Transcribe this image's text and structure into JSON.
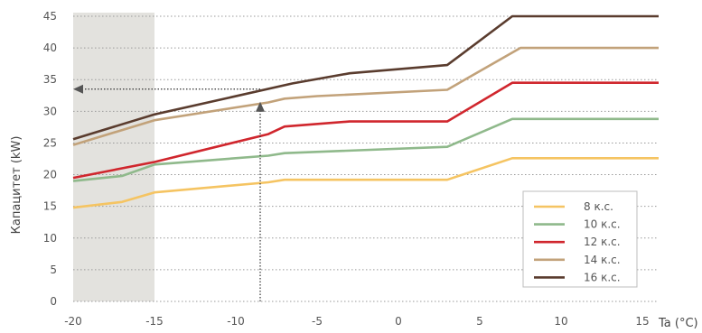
{
  "chart_data": {
    "type": "line",
    "xlabel": "Ta (°C)",
    "ylabel": "Капацитет (kW)",
    "xlim": [
      -20,
      16
    ],
    "ylim": [
      0,
      45
    ],
    "x_ticks": [
      "-20",
      "-15",
      "-10",
      "-5",
      "0",
      "5",
      "10",
      "15"
    ],
    "y_ticks": [
      "0",
      "5",
      "10",
      "15",
      "20",
      "25",
      "30",
      "35",
      "40",
      "45"
    ],
    "grid": "horizontal dotted",
    "legend_position": "bottom-right",
    "shaded_region": {
      "x_from": -20,
      "x_to": -15,
      "color": "#e3e2de"
    },
    "annotation": {
      "type": "dotted arrows",
      "vertical_at_x": -8.5,
      "vertical_to_y": 31.5,
      "horizontal_at_y": 33.5,
      "horizontal_to_x": -20
    },
    "series": [
      {
        "name": "8 к.с.",
        "color": "#f5c462",
        "points": [
          [
            -20,
            14.8
          ],
          [
            -17,
            15.7
          ],
          [
            -15,
            17.2
          ],
          [
            -8,
            18.8
          ],
          [
            -7,
            19.2
          ],
          [
            3,
            19.2
          ],
          [
            7,
            22.6
          ],
          [
            16,
            22.6
          ]
        ]
      },
      {
        "name": "10 к.с.",
        "color": "#8fb98b",
        "points": [
          [
            -20,
            19.0
          ],
          [
            -17,
            19.8
          ],
          [
            -15,
            21.6
          ],
          [
            -8,
            23.0
          ],
          [
            -7,
            23.4
          ],
          [
            3,
            24.4
          ],
          [
            7,
            28.8
          ],
          [
            16,
            28.8
          ]
        ]
      },
      {
        "name": "12 к.с.",
        "color": "#d0262d",
        "points": [
          [
            -20,
            19.5
          ],
          [
            -15,
            22.0
          ],
          [
            -8,
            26.4
          ],
          [
            -7,
            27.6
          ],
          [
            -3,
            28.4
          ],
          [
            3,
            28.4
          ],
          [
            7,
            34.5
          ],
          [
            16,
            34.5
          ]
        ]
      },
      {
        "name": "14 к.с.",
        "color": "#c2a27a",
        "points": [
          [
            -20,
            24.7
          ],
          [
            -15,
            28.6
          ],
          [
            -8,
            31.4
          ],
          [
            -7,
            32.0
          ],
          [
            -5,
            32.4
          ],
          [
            3,
            33.4
          ],
          [
            7.5,
            40.0
          ],
          [
            16,
            40.0
          ]
        ]
      },
      {
        "name": "16 к.с.",
        "color": "#5a3c2e",
        "points": [
          [
            -20,
            25.6
          ],
          [
            -15,
            29.5
          ],
          [
            -6.5,
            34.4
          ],
          [
            -3,
            36.0
          ],
          [
            3,
            37.3
          ],
          [
            7,
            45.0
          ],
          [
            16,
            45.0
          ]
        ]
      }
    ]
  }
}
